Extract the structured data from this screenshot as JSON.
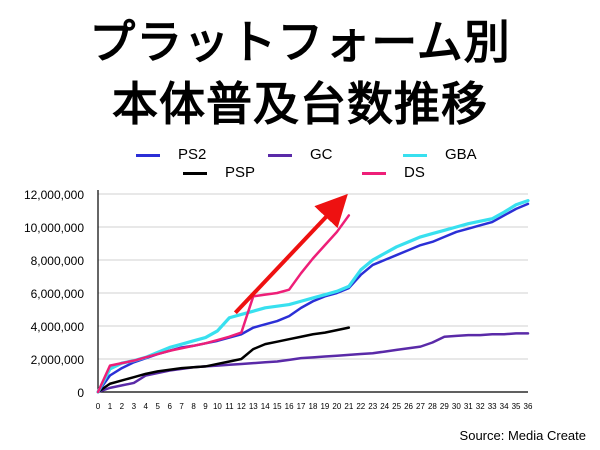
{
  "title_line1": "プラットフォーム別",
  "title_line2": "本体普及台数推移",
  "source": "Source: Media Create",
  "colors": {
    "PS2": "#2b2fd6",
    "GC": "#5a2aa8",
    "GBA": "#38e0ef",
    "PSP": "#000000",
    "DS": "#ee1f78",
    "arrow": "#ee1111"
  },
  "chart_data": {
    "type": "line",
    "title": "プラットフォーム別 本体普及台数推移",
    "xlabel": "",
    "ylabel": "",
    "xlim": [
      0,
      36
    ],
    "ylim": [
      0,
      12000000
    ],
    "yticks": [
      "0",
      "2,000,000",
      "4,000,000",
      "6,000,000",
      "8,000,000",
      "10,000,000",
      "12,000,000"
    ],
    "ytick_values": [
      0,
      2000000,
      4000000,
      6000000,
      8000000,
      10000000,
      12000000
    ],
    "xticks": [
      "0",
      "1",
      "2",
      "3",
      "4",
      "5",
      "6",
      "7",
      "8",
      "9",
      "10",
      "11",
      "12",
      "13",
      "14",
      "15",
      "16",
      "17",
      "18",
      "19",
      "20",
      "21",
      "22",
      "23",
      "24",
      "25",
      "26",
      "27",
      "28",
      "29",
      "30",
      "31",
      "32",
      "33",
      "34",
      "35",
      "36"
    ],
    "legend": [
      "PS2",
      "GC",
      "GBA",
      "PSP",
      "DS"
    ],
    "series": [
      {
        "name": "PS2",
        "values": [
          0,
          1000000,
          1450000,
          1800000,
          2050000,
          2300000,
          2500000,
          2700000,
          2800000,
          2950000,
          3100000,
          3300000,
          3500000,
          3900000,
          4100000,
          4300000,
          4600000,
          5100000,
          5500000,
          5800000,
          6000000,
          6300000,
          7100000,
          7700000,
          8000000,
          8300000,
          8600000,
          8900000,
          9100000,
          9400000,
          9700000,
          9900000,
          10100000,
          10300000,
          10700000,
          11100000,
          11400000
        ]
      },
      {
        "name": "GC",
        "values": [
          0,
          250000,
          400000,
          550000,
          1000000,
          1150000,
          1300000,
          1400000,
          1500000,
          1550000,
          1600000,
          1650000,
          1700000,
          1750000,
          1800000,
          1850000,
          1950000,
          2050000,
          2100000,
          2150000,
          2200000,
          2250000,
          2300000,
          2350000,
          2450000,
          2550000,
          2650000,
          2750000,
          3000000,
          3350000,
          3400000,
          3450000,
          3450000,
          3500000,
          3500000,
          3550000,
          3550000
        ]
      },
      {
        "name": "GBA",
        "values": [
          0,
          1400000,
          1750000,
          1900000,
          2100000,
          2400000,
          2700000,
          2900000,
          3100000,
          3300000,
          3700000,
          4500000,
          4700000,
          4900000,
          5100000,
          5200000,
          5300000,
          5500000,
          5700000,
          5900000,
          6100000,
          6400000,
          7400000,
          8000000,
          8400000,
          8800000,
          9100000,
          9400000,
          9600000,
          9800000,
          10000000,
          10200000,
          10350000,
          10500000,
          10900000,
          11350000,
          11600000
        ]
      },
      {
        "name": "PSP",
        "values": [
          0,
          500000,
          700000,
          900000,
          1100000,
          1250000,
          1350000,
          1450000,
          1500000,
          1550000,
          1700000,
          1850000,
          2000000,
          2600000,
          2900000,
          3050000,
          3200000,
          3350000,
          3500000,
          3600000,
          3750000,
          3900000
        ]
      },
      {
        "name": "DS",
        "values": [
          0,
          1600000,
          1750000,
          1900000,
          2100000,
          2300000,
          2500000,
          2650000,
          2800000,
          2950000,
          3150000,
          3350000,
          3600000,
          5800000,
          5900000,
          6000000,
          6200000,
          7200000,
          8100000,
          8900000,
          9700000,
          10700000
        ]
      }
    ],
    "annotation": {
      "type": "arrow",
      "from": [
        11.5,
        4800000
      ],
      "to": [
        20,
        11300000
      ]
    }
  }
}
